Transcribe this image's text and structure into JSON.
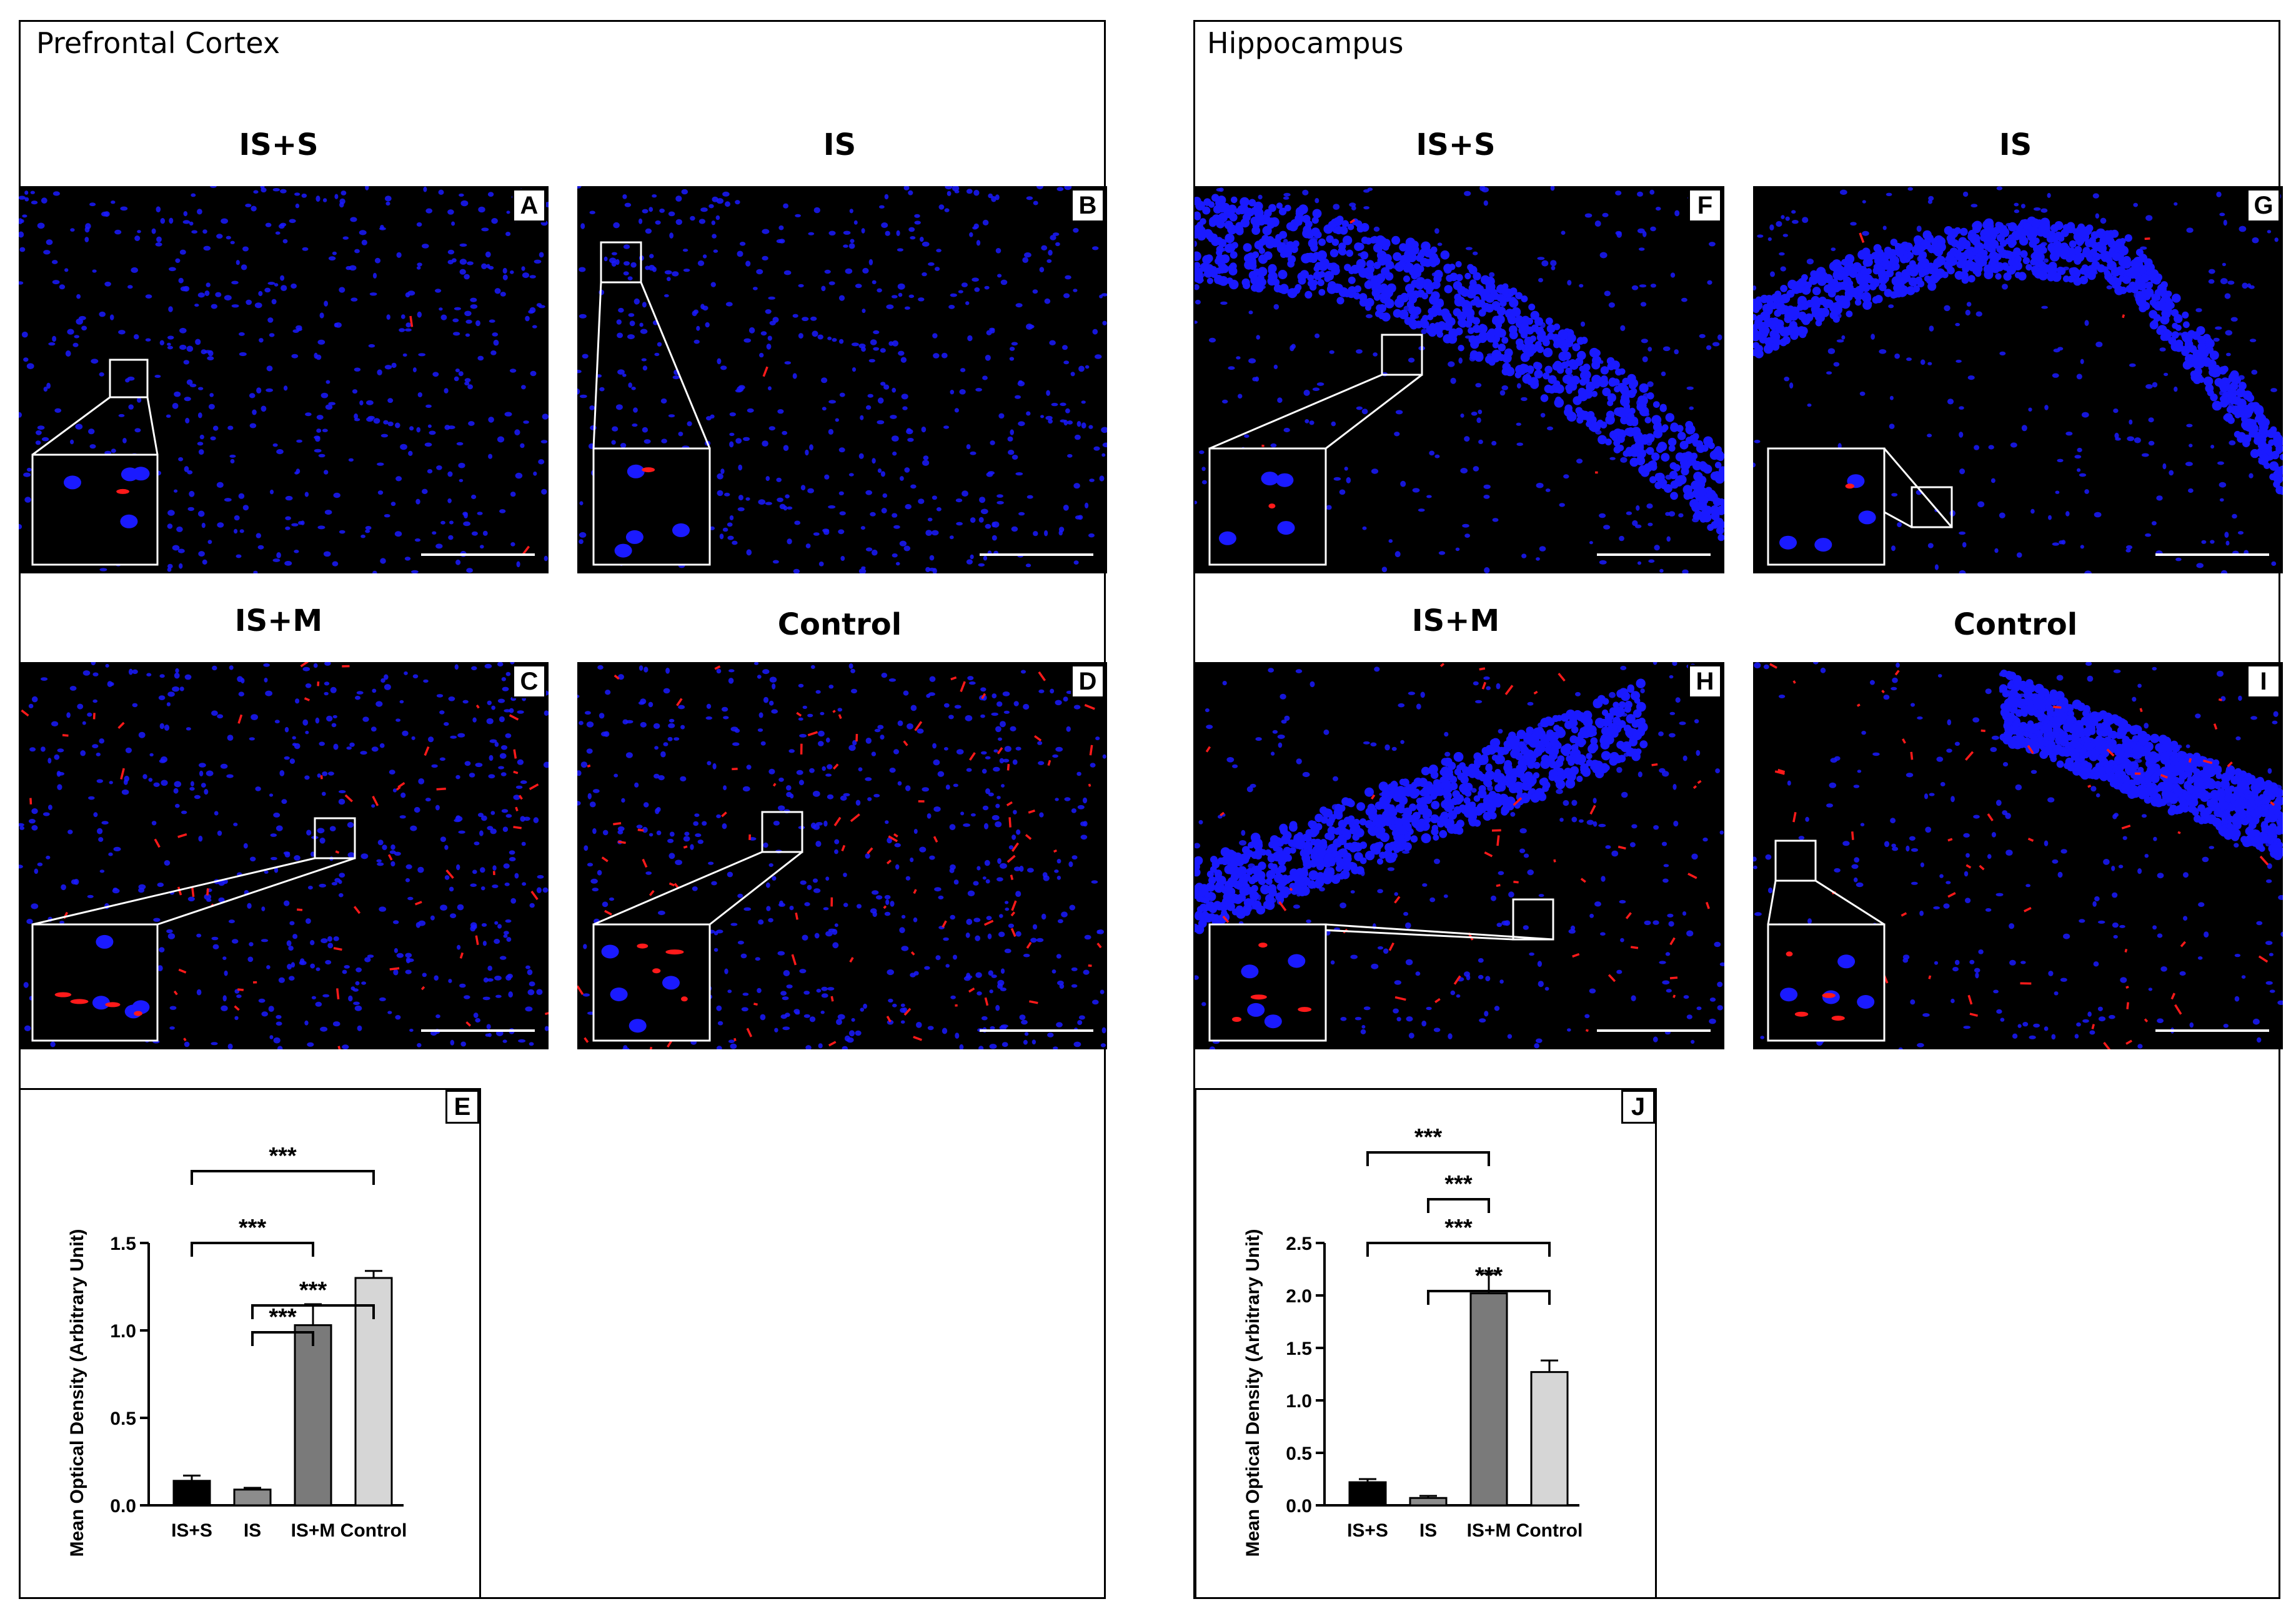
{
  "regions": [
    {
      "title": "Prefrontal Cortex"
    },
    {
      "title": "Hippocampus"
    }
  ],
  "panels": [
    {
      "letter": "A",
      "group": "IS+S",
      "scale": "100 μm"
    },
    {
      "letter": "B",
      "group": "IS",
      "scale": "100 μm"
    },
    {
      "letter": "C",
      "group": "IS+M",
      "scale": "100 μm"
    },
    {
      "letter": "D",
      "group": "Control",
      "scale": "100 μm"
    },
    {
      "letter": "F",
      "group": "IS+S",
      "scale": "100 μm"
    },
    {
      "letter": "G",
      "group": "IS",
      "scale": "100 μm"
    },
    {
      "letter": "H",
      "group": "IS+M",
      "scale": "100 μm"
    },
    {
      "letter": "I",
      "group": "Control",
      "scale": "100 μm"
    }
  ],
  "colors": {
    "nuclei": "#1a1aff",
    "signal": "#ff1a1a",
    "bar_isS": "#000000",
    "bar_is": "#8c8c8c",
    "bar_isM": "#7a7a7a",
    "bar_control": "#d6d6d6"
  },
  "chart_data": [
    {
      "letter": "E",
      "type": "bar",
      "categories": [
        "IS+S",
        "IS",
        "IS+M",
        "Control"
      ],
      "values": [
        0.14,
        0.09,
        1.03,
        1.3
      ],
      "errors": [
        0.03,
        0.01,
        0.12,
        0.04
      ],
      "ylabel": "Mean Optical Density (Arbitrary Unit)",
      "ylim": [
        0,
        1.5
      ],
      "yticks": [
        "0.0",
        "0.5",
        "1.0",
        "1.5"
      ],
      "significance": [
        {
          "from": 0,
          "to": 3,
          "label": "***"
        },
        {
          "from": 0,
          "to": 2,
          "label": "***"
        },
        {
          "from": 1,
          "to": 3,
          "label": "***"
        },
        {
          "from": 1,
          "to": 2,
          "label": "***"
        }
      ]
    },
    {
      "letter": "J",
      "type": "bar",
      "categories": [
        "IS+S",
        "IS",
        "IS+M",
        "Control"
      ],
      "values": [
        0.22,
        0.07,
        2.02,
        1.27
      ],
      "errors": [
        0.03,
        0.02,
        0.19,
        0.11
      ],
      "ylabel": "Mean Optical Density (Arbitrary Unit)",
      "ylim": [
        0,
        2.5
      ],
      "yticks": [
        "0.0",
        "0.5",
        "1.0",
        "1.5",
        "2.0",
        "2.5"
      ],
      "significance": [
        {
          "from": 0,
          "to": 2,
          "label": "***"
        },
        {
          "from": 1,
          "to": 2,
          "label": "***"
        },
        {
          "from": 0,
          "to": 3,
          "label": "***"
        },
        {
          "from": 1,
          "to": 3,
          "label": "***"
        }
      ]
    }
  ]
}
